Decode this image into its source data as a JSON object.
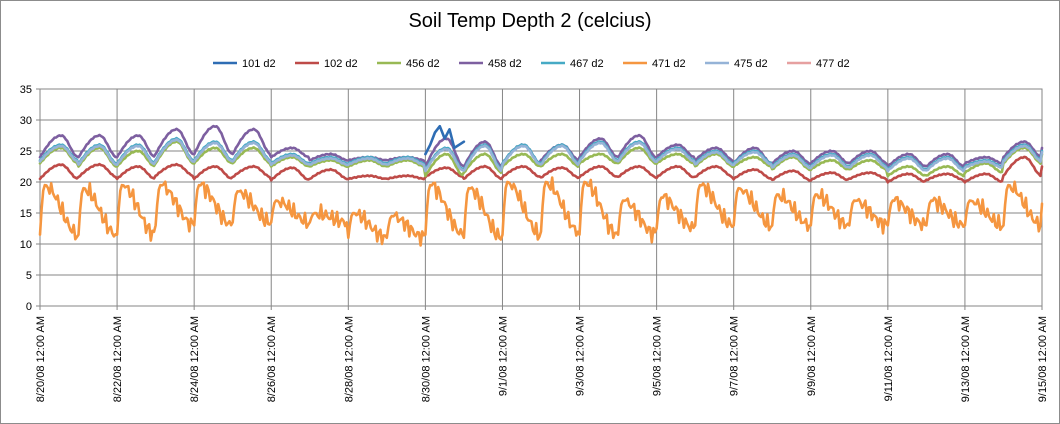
{
  "chart_data": {
    "type": "line",
    "title": "Soil Temp Depth 2 (celcius)",
    "xlabel": "",
    "ylabel": "",
    "ylim": [
      0,
      35
    ],
    "yticks": [
      0,
      5,
      10,
      15,
      20,
      25,
      30,
      35
    ],
    "x_range": [
      "8/20/08 12:00 AM",
      "9/15/08 12:00 AM"
    ],
    "xticks": [
      "8/20/08 12:00 AM",
      "8/22/08 12:00 AM",
      "8/24/08 12:00 AM",
      "8/26/08 12:00 AM",
      "8/28/08 12:00 AM",
      "8/30/08 12:00 AM",
      "9/1/08 12:00 AM",
      "9/3/08 12:00 AM",
      "9/5/08 12:00 AM",
      "9/7/08 12:00 AM",
      "9/9/08 12:00 AM",
      "9/11/08 12:00 AM",
      "9/13/08 12:00 AM",
      "9/15/08 12:00 AM"
    ],
    "grid": true,
    "legend_position": "top",
    "series": [
      {
        "name": "101 d2",
        "color": "#2e6db4",
        "x_start": "8/30/08 0:00",
        "x_end": "8/31/08 0:00",
        "values": [
          24.5,
          26.0,
          28.0,
          29.0,
          27.0,
          28.5,
          25.5,
          26.0,
          26.5
        ]
      },
      {
        "name": "102 d2",
        "color": "#be4b48",
        "daily_min": [
          20.5,
          20.8,
          20.5,
          21.0,
          20.5,
          20.8,
          20.3,
          20.5,
          20.5,
          20.5,
          20.8,
          20.5,
          20.8,
          20.7,
          20.8,
          20.8,
          20.7,
          20.8,
          20.5,
          20.3,
          20.3,
          20.5,
          20.0,
          20.3,
          20.0,
          21.0,
          22.5
        ],
        "daily_max": [
          22.8,
          22.8,
          22.5,
          22.8,
          22.5,
          22.5,
          22.3,
          22.0,
          21.0,
          21.0,
          22.3,
          22.5,
          22.5,
          22.3,
          22.5,
          22.5,
          22.5,
          22.5,
          22.0,
          21.8,
          21.5,
          21.5,
          21.3,
          21.3,
          21.3,
          24.0,
          23.5
        ]
      },
      {
        "name": "456 d2",
        "color": "#98b954",
        "daily_min": [
          23.0,
          22.5,
          22.5,
          23.0,
          23.0,
          23.0,
          22.5,
          22.5,
          22.5,
          22.5,
          21.0,
          21.5,
          22.5,
          22.5,
          23.0,
          23.0,
          23.0,
          22.5,
          22.5,
          22.0,
          22.0,
          22.0,
          21.0,
          21.0,
          21.5,
          23.0,
          24.5
        ],
        "daily_max": [
          25.5,
          25.5,
          25.0,
          26.5,
          25.5,
          25.5,
          24.0,
          23.5,
          23.5,
          23.5,
          24.5,
          24.5,
          24.5,
          24.5,
          24.5,
          25.5,
          24.5,
          24.5,
          24.0,
          24.0,
          23.5,
          23.5,
          22.5,
          22.5,
          23.0,
          25.5,
          25.0
        ]
      },
      {
        "name": "458 d2",
        "color": "#7d5fa0",
        "daily_min": [
          24.0,
          24.0,
          24.0,
          24.5,
          24.5,
          24.5,
          24.0,
          23.5,
          23.5,
          23.5,
          22.5,
          22.5,
          23.0,
          23.5,
          24.0,
          24.0,
          24.0,
          23.5,
          23.0,
          23.0,
          23.0,
          23.0,
          22.5,
          22.5,
          23.0,
          24.0,
          25.5
        ],
        "daily_max": [
          27.5,
          27.5,
          27.5,
          28.5,
          29.0,
          28.5,
          25.5,
          24.5,
          24.0,
          24.0,
          27.0,
          26.5,
          26.0,
          26.0,
          27.0,
          27.5,
          26.0,
          25.5,
          25.5,
          25.0,
          25.0,
          25.0,
          24.5,
          24.5,
          24.0,
          26.5,
          27.0
        ]
      },
      {
        "name": "467 d2",
        "color": "#46aac5",
        "daily_min": [
          23.5,
          23.0,
          23.0,
          23.5,
          23.5,
          23.5,
          23.0,
          23.0,
          23.0,
          23.0,
          22.0,
          22.0,
          23.0,
          23.0,
          23.5,
          23.5,
          23.5,
          23.0,
          23.0,
          22.5,
          22.5,
          22.5,
          22.0,
          22.0,
          22.5,
          23.5,
          25.0
        ],
        "daily_max": [
          26.0,
          26.0,
          26.0,
          27.0,
          26.5,
          26.5,
          24.5,
          24.0,
          24.0,
          24.0,
          25.5,
          26.0,
          26.0,
          26.0,
          26.5,
          26.5,
          25.5,
          25.0,
          25.0,
          24.5,
          24.5,
          24.5,
          24.0,
          24.0,
          23.5,
          26.0,
          26.5
        ]
      },
      {
        "name": "471 d2",
        "color": "#f59640",
        "daily_min": [
          11.5,
          11.5,
          11.5,
          13.0,
          13.0,
          13.5,
          13.5,
          13.5,
          11.0,
          11.0,
          11.5,
          11.0,
          11.5,
          12.0,
          11.5,
          11.5,
          12.5,
          13.0,
          13.0,
          13.0,
          13.0,
          13.0,
          13.0,
          13.0,
          13.0,
          13.0,
          16.5
        ],
        "daily_max": [
          19.5,
          19.0,
          19.5,
          19.5,
          19.5,
          18.5,
          17.0,
          15.0,
          15.0,
          14.5,
          19.5,
          19.0,
          20.0,
          20.0,
          20.0,
          17.0,
          17.5,
          19.5,
          19.0,
          18.0,
          18.0,
          17.0,
          17.0,
          17.0,
          17.0,
          19.5,
          19.5
        ]
      },
      {
        "name": "475 d2",
        "color": "#95b3d7",
        "daily_min": [
          23.3,
          22.8,
          22.8,
          23.3,
          23.3,
          23.3,
          22.8,
          22.8,
          22.8,
          22.8,
          21.8,
          21.8,
          22.8,
          22.8,
          23.3,
          23.3,
          23.3,
          22.8,
          22.8,
          22.3,
          22.3,
          22.3,
          21.8,
          21.8,
          22.3,
          23.3,
          24.8
        ],
        "daily_max": [
          25.8,
          25.8,
          25.8,
          26.8,
          26.3,
          26.3,
          24.3,
          23.8,
          23.8,
          23.8,
          25.3,
          25.8,
          25.8,
          25.8,
          26.3,
          26.3,
          25.3,
          24.8,
          24.8,
          24.3,
          24.3,
          24.3,
          23.8,
          23.8,
          23.3,
          25.8,
          26.3
        ]
      },
      {
        "name": "477 d2",
        "color": "#e6a0a0",
        "values": []
      }
    ]
  }
}
